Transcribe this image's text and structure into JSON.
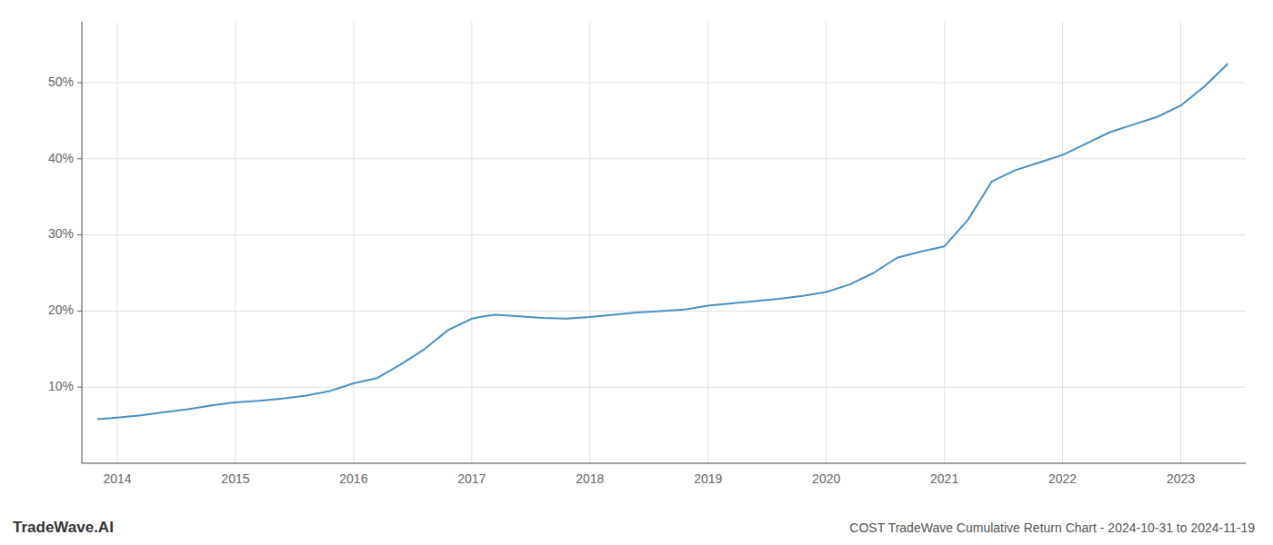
{
  "chart_data": {
    "type": "line",
    "title": "COST TradeWave Cumulative Return Chart - 2024-10-31 to 2024-11-19",
    "annotations": [
      "TradeWave.AI"
    ],
    "color": "#4a90c4",
    "grid": true,
    "x": [
      2013.83,
      2014.0,
      2014.2,
      2014.4,
      2014.6,
      2014.8,
      2015.0,
      2015.2,
      2015.4,
      2015.6,
      2015.8,
      2016.0,
      2016.2,
      2016.4,
      2016.6,
      2016.8,
      2017.0,
      2017.1,
      2017.2,
      2017.4,
      2017.6,
      2017.8,
      2018.0,
      2018.2,
      2018.4,
      2018.6,
      2018.8,
      2019.0,
      2019.2,
      2019.4,
      2019.6,
      2019.8,
      2020.0,
      2020.2,
      2020.4,
      2020.6,
      2020.8,
      2021.0,
      2021.2,
      2021.4,
      2021.6,
      2021.8,
      2022.0,
      2022.2,
      2022.4,
      2022.6,
      2022.8,
      2023.0,
      2023.2,
      2023.4
    ],
    "values": [
      5.8,
      6.0,
      6.3,
      6.7,
      7.1,
      7.6,
      8.0,
      8.2,
      8.5,
      8.9,
      9.5,
      10.5,
      11.2,
      13.0,
      15.0,
      17.5,
      19.0,
      19.3,
      19.5,
      19.3,
      19.1,
      19.0,
      19.2,
      19.5,
      19.8,
      20.0,
      20.2,
      20.7,
      21.0,
      21.3,
      21.6,
      22.0,
      22.5,
      23.5,
      25.0,
      27.0,
      27.8,
      28.5,
      32.0,
      37.0,
      38.5,
      39.5,
      40.5,
      42.0,
      43.5,
      44.5,
      45.5,
      47.0,
      49.5,
      52.5
    ],
    "xlim": [
      2013.7,
      2023.55
    ],
    "ylim": [
      0,
      58
    ],
    "xticks": [
      2014,
      2015,
      2016,
      2017,
      2018,
      2019,
      2020,
      2021,
      2022,
      2023
    ],
    "yticks": [
      {
        "value": 10,
        "label": "10%"
      },
      {
        "value": 20,
        "label": "20%"
      },
      {
        "value": 30,
        "label": "30%"
      },
      {
        "value": 40,
        "label": "40%"
      },
      {
        "value": 50,
        "label": "50%"
      }
    ]
  }
}
